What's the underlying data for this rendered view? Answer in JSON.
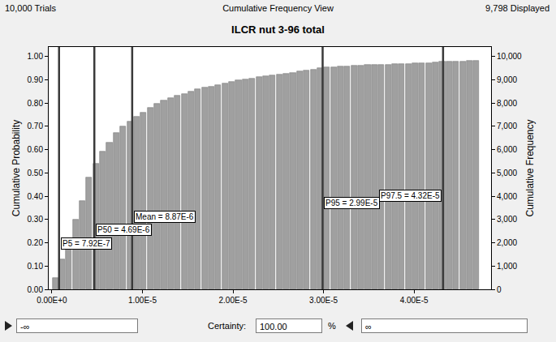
{
  "header": {
    "left": "10,000 Trials",
    "center": "Cumulative Frequency View",
    "right": "9,798 Displayed"
  },
  "chart_data": {
    "type": "histogram",
    "title": "ILCR nut 3-96 total",
    "y_label": "Cumulative Probability",
    "y2_label": "Cumulative Frequency",
    "bins": [
      0,
      7.5e-07,
      1.5e-06,
      2.25e-06,
      3e-06,
      3.75e-06,
      4.5e-06,
      5.25e-06,
      6e-06,
      6.75e-06,
      7.5e-06,
      8.25e-06,
      9e-06,
      9.75e-06,
      1.05e-05,
      1.125e-05,
      1.2e-05,
      1.275e-05,
      1.35e-05,
      1.425e-05,
      1.5e-05,
      1.575e-05,
      1.65e-05,
      1.725e-05,
      1.8e-05,
      1.875e-05,
      1.95e-05,
      2.025e-05,
      2.1e-05,
      2.175e-05,
      2.25e-05,
      2.325e-05,
      2.4e-05,
      2.475e-05,
      2.55e-05,
      2.625e-05,
      2.7e-05,
      2.775e-05,
      2.85e-05,
      2.925e-05,
      3e-05,
      3.075e-05,
      3.15e-05,
      3.225e-05,
      3.3e-05,
      3.375e-05,
      3.45e-05,
      3.525e-05,
      3.6e-05,
      3.675e-05,
      3.75e-05,
      3.825e-05,
      3.9e-05,
      3.975e-05,
      4.05e-05,
      4.125e-05,
      4.2e-05,
      4.275e-05,
      4.35e-05,
      4.425e-05,
      4.5e-05,
      4.575e-05,
      4.65e-05,
      4.725e-05
    ],
    "values": [
      0.05,
      0.13,
      0.22,
      0.3,
      0.38,
      0.48,
      0.54,
      0.59,
      0.63,
      0.67,
      0.7,
      0.72,
      0.74,
      0.76,
      0.78,
      0.795,
      0.81,
      0.82,
      0.83,
      0.84,
      0.85,
      0.86,
      0.865,
      0.87,
      0.878,
      0.885,
      0.89,
      0.896,
      0.9,
      0.905,
      0.91,
      0.914,
      0.918,
      0.922,
      0.926,
      0.93,
      0.934,
      0.938,
      0.944,
      0.95,
      0.952,
      0.954,
      0.956,
      0.958,
      0.96,
      0.961,
      0.962,
      0.963,
      0.964,
      0.965,
      0.966,
      0.967,
      0.968,
      0.969,
      0.97,
      0.972,
      0.974,
      0.976,
      0.977,
      0.978,
      0.979,
      0.9795,
      0.98
    ],
    "color": "#a0a0a0",
    "xlim": [
      -3.5e-07,
      4.85e-05
    ],
    "xticks": [
      {
        "value": 0,
        "label": "0.00E+0"
      },
      {
        "value": 1e-05,
        "label": "1.00E-5"
      },
      {
        "value": 2e-05,
        "label": "2.00E-5"
      },
      {
        "value": 3e-05,
        "label": "3.00E-5"
      },
      {
        "value": 4e-05,
        "label": "4.00E-5"
      }
    ],
    "ylim": [
      0,
      1.04
    ],
    "yticks": [
      {
        "value": 0,
        "label": "0.00"
      },
      {
        "value": 0.1,
        "label": "0.10"
      },
      {
        "value": 0.2,
        "label": "0.20"
      },
      {
        "value": 0.3,
        "label": "0.30"
      },
      {
        "value": 0.4,
        "label": "0.40"
      },
      {
        "value": 0.5,
        "label": "0.50"
      },
      {
        "value": 0.6,
        "label": "0.60"
      },
      {
        "value": 0.7,
        "label": "0.70"
      },
      {
        "value": 0.8,
        "label": "0.80"
      },
      {
        "value": 0.9,
        "label": "0.90"
      },
      {
        "value": 1,
        "label": "1.00"
      }
    ],
    "y2lim": [
      0,
      10400
    ],
    "y2ticks": [
      0,
      {
        "value": 1000,
        "label": "1,000"
      },
      {
        "value": 2000,
        "label": "2,000"
      },
      {
        "value": 3000,
        "label": "3,000"
      },
      {
        "value": 4000,
        "label": "4,000"
      },
      {
        "value": 5000,
        "label": "5,000"
      },
      {
        "value": 6000,
        "label": "6,000"
      },
      {
        "value": 7000,
        "label": "7,000"
      },
      {
        "value": 8000,
        "label": "8,000"
      },
      {
        "value": 9000,
        "label": "9,000"
      },
      {
        "value": 10000,
        "label": "10,000"
      }
    ],
    "grid": false,
    "markers": [
      {
        "value": 7.92e-07,
        "label": "P5 = 7.92E-7"
      },
      {
        "value": 4.69e-06,
        "label": "P50 = 4.69E-6"
      },
      {
        "value": 8.87e-06,
        "label": "Mean = 8.87E-6"
      },
      {
        "value": 2.99e-05,
        "label": "P95 = 2.99E-5"
      },
      {
        "value": 4.32e-05,
        "label": "P97.5 = 4.32E-5"
      }
    ]
  },
  "controls": {
    "lower": "-∞",
    "certainty_label": "Certainty:",
    "certainty": "100.00",
    "certainty_unit": "%",
    "upper": "∞"
  }
}
